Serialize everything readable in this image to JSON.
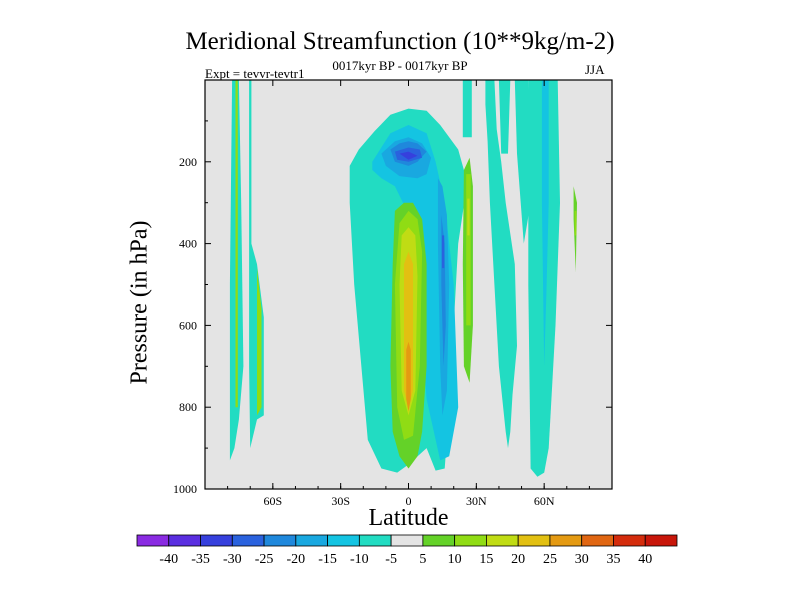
{
  "chart_data": {
    "type": "contour",
    "title": "Meridional Streamfunction (10**9kg/m-2)",
    "subtitle": "0017kyr BP - 0017kyr BP",
    "experiment": "Expt = tevvr-tevtr1",
    "season": "JJA",
    "xlabel": "Latitude",
    "ylabel": "Pressure (in hPa)",
    "xlim": [
      -90,
      90
    ],
    "ylim": [
      1000,
      0
    ],
    "x_ticks": [
      {
        "value": -60,
        "label": "60S"
      },
      {
        "value": -30,
        "label": "30S"
      },
      {
        "value": 0,
        "label": "0"
      },
      {
        "value": 30,
        "label": "30N"
      },
      {
        "value": 60,
        "label": "60N"
      }
    ],
    "y_ticks": [
      {
        "value": 200,
        "label": "200"
      },
      {
        "value": 400,
        "label": "400"
      },
      {
        "value": 600,
        "label": "600"
      },
      {
        "value": 800,
        "label": "800"
      },
      {
        "value": 1000,
        "label": "1000"
      }
    ],
    "colorbar_labels": [
      "-40",
      "-35",
      "-30",
      "-25",
      "-20",
      "-15",
      "-10",
      "-5",
      "5",
      "10",
      "15",
      "20",
      "25",
      "30",
      "35",
      "40"
    ],
    "colorbar_colors": [
      "#8a2be2",
      "#5a2ee0",
      "#3640dd",
      "#2a62de",
      "#1f88dc",
      "#19a8e0",
      "#14c4e2",
      "#22dcc2",
      "#e4e4e4",
      "#64d228",
      "#90dc14",
      "#c0dc14",
      "#e2c012",
      "#e49a12",
      "#e06612",
      "#d42c0c",
      "#c8160a"
    ],
    "regions": [
      {
        "level": "-5",
        "lat": [
          -78,
          -75,
          -74,
          -73,
          -75,
          -77,
          -79,
          -79
        ],
        "p": [
          0,
          0,
          300,
          700,
          830,
          900,
          930,
          500
        ]
      },
      {
        "level": "10",
        "lat": [
          -76.5,
          -75.5,
          -75.5,
          -76.5
        ],
        "p": [
          0,
          0,
          800,
          800
        ]
      },
      {
        "level": "-5",
        "lat": [
          -70.5,
          -69.5,
          -69.5,
          -67,
          -64,
          -64,
          -67,
          -70,
          -70.5
        ],
        "p": [
          0,
          0,
          400,
          450,
          580,
          820,
          830,
          900,
          700
        ]
      },
      {
        "level": "10",
        "lat": [
          -67,
          -65,
          -65,
          -67
        ],
        "p": [
          460,
          560,
          800,
          820
        ]
      },
      {
        "level": "-5",
        "lat": [
          -26,
          -22,
          -15,
          -8,
          0,
          8,
          14,
          22,
          26,
          22,
          20,
          18,
          16,
          12,
          8,
          0,
          -5,
          -12,
          -18,
          -24,
          -26
        ],
        "p": [
          210,
          170,
          125,
          85,
          70,
          75,
          110,
          170,
          250,
          400,
          600,
          800,
          950,
          955,
          900,
          940,
          960,
          950,
          880,
          500,
          300
        ]
      },
      {
        "level": "-10",
        "lat": [
          -16,
          -8,
          0,
          8,
          12,
          16,
          20,
          22,
          18,
          14,
          8,
          2,
          -6,
          -12,
          -16
        ],
        "p": [
          200,
          130,
          110,
          130,
          200,
          300,
          500,
          800,
          920,
          930,
          780,
          350,
          260,
          240,
          220
        ]
      },
      {
        "level": "-15",
        "lat": [
          -12,
          -6,
          0,
          6,
          10,
          8,
          4,
          -4,
          -10
        ],
        "p": [
          180,
          150,
          140,
          155,
          190,
          230,
          240,
          235,
          210
        ]
      },
      {
        "level": "-15",
        "lat": [
          13,
          15,
          17,
          18,
          17,
          15,
          14,
          13
        ],
        "p": [
          240,
          260,
          330,
          500,
          760,
          820,
          700,
          400
        ]
      },
      {
        "level": "-20",
        "lat": [
          -8,
          -4,
          0,
          4,
          8,
          4,
          0,
          -6
        ],
        "p": [
          170,
          155,
          150,
          155,
          175,
          200,
          210,
          200
        ]
      },
      {
        "level": "-20",
        "lat": [
          14.5,
          16,
          16.5,
          15.5,
          14.5
        ],
        "p": [
          330,
          400,
          600,
          700,
          500
        ]
      },
      {
        "level": "-25",
        "lat": [
          -6,
          0,
          5,
          6,
          0,
          -5
        ],
        "p": [
          175,
          165,
          170,
          190,
          200,
          195
        ]
      },
      {
        "level": "-25",
        "lat": [
          14.8,
          15.8,
          15.8,
          14.8
        ],
        "p": [
          380,
          380,
          460,
          460
        ]
      },
      {
        "level": "-30",
        "lat": [
          -4,
          0,
          4,
          0
        ],
        "p": [
          180,
          175,
          185,
          195
        ]
      },
      {
        "level": "5",
        "lat": [
          -6,
          -2,
          2,
          6,
          8,
          8,
          6,
          4,
          0,
          -4,
          -7,
          -8,
          -7
        ],
        "p": [
          320,
          300,
          300,
          340,
          450,
          700,
          860,
          920,
          950,
          920,
          860,
          700,
          450
        ]
      },
      {
        "level": "10",
        "lat": [
          -4,
          0,
          4,
          6,
          5,
          2,
          -2,
          -5,
          -6
        ],
        "p": [
          350,
          320,
          340,
          420,
          700,
          870,
          880,
          800,
          500
        ]
      },
      {
        "level": "15",
        "lat": [
          -3,
          0,
          3,
          4,
          3,
          0,
          -3,
          -4
        ],
        "p": [
          380,
          360,
          380,
          480,
          760,
          820,
          760,
          500
        ]
      },
      {
        "level": "20",
        "lat": [
          -2,
          0,
          2,
          2,
          0,
          -2
        ],
        "p": [
          450,
          420,
          450,
          760,
          800,
          760
        ]
      },
      {
        "level": "25",
        "lat": [
          -1,
          0,
          1,
          1,
          0,
          -1
        ],
        "p": [
          660,
          640,
          660,
          780,
          810,
          780
        ]
      },
      {
        "level": "-5",
        "lat": [
          24,
          28,
          28,
          24
        ],
        "p": [
          0,
          0,
          140,
          140
        ]
      },
      {
        "level": "5",
        "lat": [
          24.5,
          27,
          28.5,
          28.5,
          27,
          24.5,
          24
        ],
        "p": [
          220,
          190,
          260,
          600,
          740,
          700,
          450
        ]
      },
      {
        "level": "10",
        "lat": [
          25.5,
          27.5,
          27.5,
          25.5
        ],
        "p": [
          230,
          230,
          600,
          600
        ]
      },
      {
        "level": "15",
        "lat": [
          26,
          27,
          27,
          26
        ],
        "p": [
          290,
          290,
          380,
          380
        ]
      },
      {
        "level": "-5",
        "lat": [
          34,
          38,
          39,
          41,
          43,
          47,
          48,
          46,
          45,
          44,
          43,
          40,
          38,
          36,
          35,
          34
        ],
        "p": [
          0,
          0,
          120,
          200,
          300,
          450,
          650,
          770,
          860,
          900,
          860,
          700,
          500,
          300,
          150,
          60
        ]
      },
      {
        "level": "-5",
        "lat": [
          40,
          45,
          44,
          41
        ],
        "p": [
          0,
          0,
          180,
          180
        ]
      },
      {
        "level": "-5",
        "lat": [
          47,
          53,
          54,
          51,
          48
        ],
        "p": [
          0,
          0,
          300,
          400,
          180
        ]
      },
      {
        "level": "-5",
        "lat": [
          53,
          66,
          67,
          65,
          62,
          60,
          57,
          54,
          53
        ],
        "p": [
          0,
          0,
          300,
          600,
          900,
          960,
          970,
          950,
          500
        ]
      },
      {
        "level": "-10",
        "lat": [
          59,
          62,
          62,
          61,
          60,
          59
        ],
        "p": [
          0,
          0,
          300,
          520,
          700,
          300
        ]
      },
      {
        "level": "5",
        "lat": [
          73,
          74.5,
          74,
          73
        ],
        "p": [
          260,
          300,
          470,
          340
        ]
      },
      {
        "level": "10",
        "lat": [
          73.5,
          74.2,
          74.2,
          73.5
        ],
        "p": [
          320,
          320,
          380,
          380
        ]
      }
    ]
  }
}
